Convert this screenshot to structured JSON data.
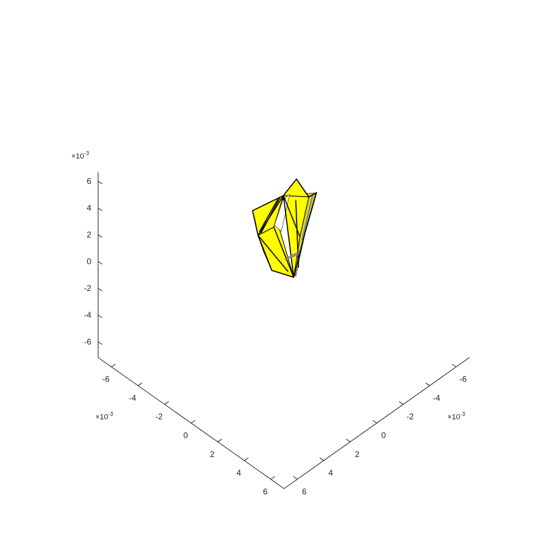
{
  "chart_data": {
    "type": "surface",
    "view": "3d",
    "title": "",
    "surface_color": "#ffff00",
    "edge_color": "#000000",
    "z_axis": {
      "exponent": "×10⁻³",
      "exponent_base": "×10",
      "exponent_power": "-3",
      "ticks": [
        "6",
        "4",
        "2",
        "0",
        "-2",
        "-4",
        "-6"
      ],
      "lim": [
        -0.007,
        0.007
      ]
    },
    "x_axis": {
      "exponent_base": "×10",
      "exponent_power": "-3",
      "ticks": [
        "-6",
        "-4",
        "-2",
        "0",
        "2",
        "4",
        "6"
      ],
      "lim": [
        -0.007,
        0.007
      ]
    },
    "y_axis": {
      "exponent_base": "×10",
      "exponent_power": "-3",
      "ticks": [
        "-6",
        "-4",
        "-2",
        "0",
        "2",
        "4",
        "6"
      ],
      "lim": [
        -0.007,
        0.007
      ]
    }
  }
}
